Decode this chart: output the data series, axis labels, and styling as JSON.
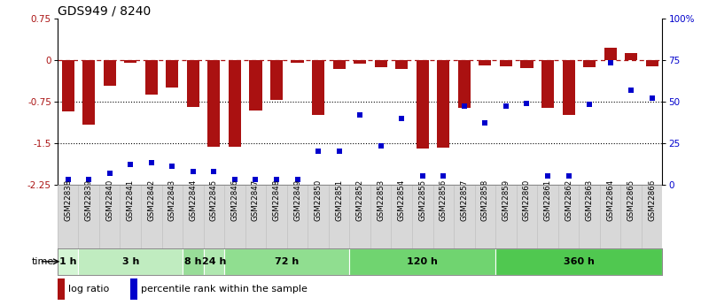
{
  "title": "GDS949 / 8240",
  "samples": [
    "GSM22838",
    "GSM22839",
    "GSM22840",
    "GSM22841",
    "GSM22842",
    "GSM22843",
    "GSM22844",
    "GSM22845",
    "GSM22846",
    "GSM22847",
    "GSM22848",
    "GSM22849",
    "GSM22850",
    "GSM22851",
    "GSM22852",
    "GSM22853",
    "GSM22854",
    "GSM22855",
    "GSM22856",
    "GSM22857",
    "GSM22858",
    "GSM22859",
    "GSM22860",
    "GSM22861",
    "GSM22862",
    "GSM22863",
    "GSM22864",
    "GSM22865",
    "GSM22866"
  ],
  "log_ratio": [
    -0.93,
    -1.17,
    -0.47,
    -0.05,
    -0.62,
    -0.5,
    -0.85,
    -1.57,
    -1.57,
    -0.92,
    -0.73,
    -0.06,
    -1.0,
    -0.17,
    -0.07,
    -0.13,
    -0.17,
    -1.6,
    -1.58,
    -0.87,
    -0.1,
    -0.12,
    -0.15,
    -0.87,
    -1.0,
    -0.13,
    0.22,
    0.13,
    -0.12
  ],
  "percentile_rank": [
    3,
    3,
    7,
    12,
    13,
    11,
    8,
    8,
    3,
    3,
    3,
    3,
    20,
    20,
    42,
    23,
    40,
    5,
    5,
    47,
    37,
    47,
    49,
    5,
    5,
    48,
    73,
    57,
    52
  ],
  "time_groups": [
    {
      "label": "1 h",
      "start": 0,
      "end": 1,
      "color": "#d4f5d4"
    },
    {
      "label": "3 h",
      "start": 1,
      "end": 6,
      "color": "#c0ecc0"
    },
    {
      "label": "8 h",
      "start": 6,
      "end": 7,
      "color": "#98dd98"
    },
    {
      "label": "24 h",
      "start": 7,
      "end": 8,
      "color": "#b0e8b0"
    },
    {
      "label": "72 h",
      "start": 8,
      "end": 14,
      "color": "#90de90"
    },
    {
      "label": "120 h",
      "start": 14,
      "end": 21,
      "color": "#70d470"
    },
    {
      "label": "360 h",
      "start": 21,
      "end": 29,
      "color": "#50c850"
    }
  ],
  "bar_color": "#aa1111",
  "dot_color": "#0000cc",
  "xlim": [
    -0.5,
    28.5
  ],
  "ylim_left": [
    -2.25,
    0.75
  ],
  "ylim_right": [
    0,
    100
  ],
  "yticks_left": [
    0.75,
    0.0,
    -0.75,
    -1.5,
    -2.25
  ],
  "ytick_labels_left": [
    "0.75",
    "0",
    "-0.75",
    "-1.5",
    "-2.25"
  ],
  "yticks_right": [
    100,
    75,
    50,
    25,
    0
  ],
  "ytick_labels_right": [
    "100%",
    "75",
    "50",
    "25",
    "0"
  ],
  "hlines_dotted": [
    -0.75,
    -1.5
  ],
  "bg_color": "#ffffff",
  "xlabel_bg": "#d8d8d8",
  "title_fontsize": 10,
  "tick_fontsize": 7.5,
  "bar_width": 0.6,
  "dot_size": 15
}
